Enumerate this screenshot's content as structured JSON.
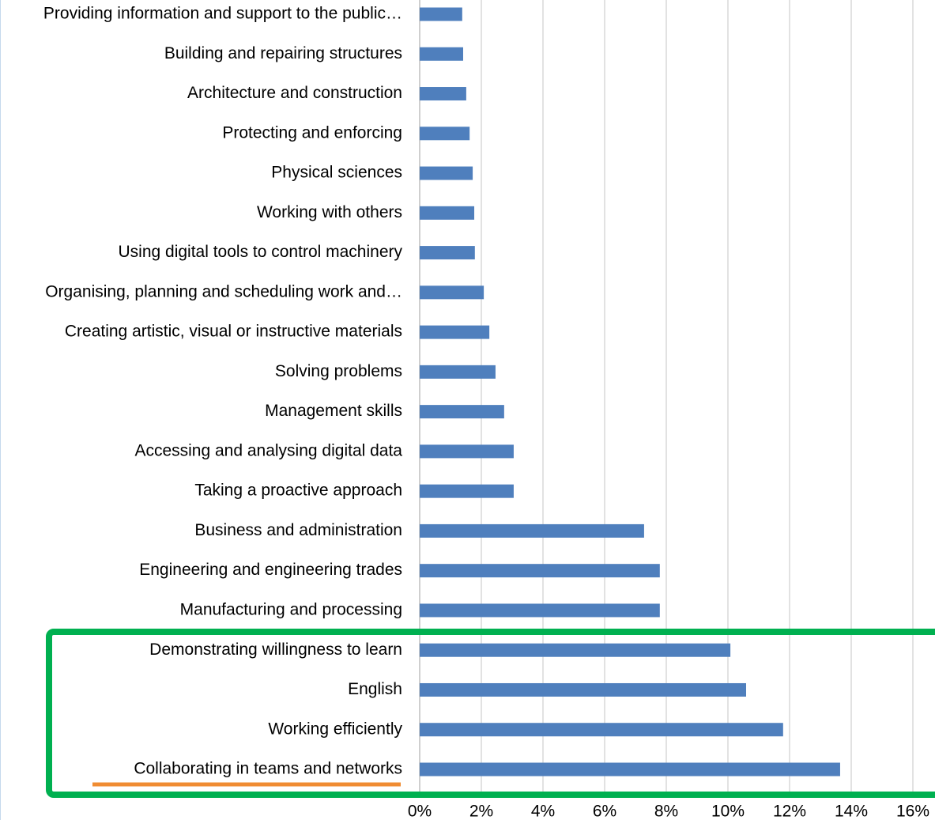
{
  "chart_data": {
    "type": "bar",
    "orientation": "horizontal",
    "categories": [
      "Providing information and support to the public…",
      "Building and repairing structures",
      "Architecture and construction",
      "Protecting and enforcing",
      "Physical sciences",
      "Working with others",
      "Using digital tools to control machinery",
      "Organising, planning and scheduling work and…",
      "Creating artistic, visual or instructive materials",
      "Solving problems",
      "Management skills",
      "Accessing and analysing digital data",
      "Taking a proactive approach",
      "Business and administration",
      "Engineering and engineering trades",
      "Manufacturing and processing",
      "Demonstrating willingness to learn",
      "English",
      "Working efficiently",
      "Collaborating in teams and networks"
    ],
    "values": [
      1.38,
      1.41,
      1.51,
      1.62,
      1.72,
      1.77,
      1.79,
      2.08,
      2.26,
      2.46,
      2.74,
      3.05,
      3.05,
      7.28,
      7.79,
      7.79,
      10.08,
      10.59,
      11.79,
      13.64
    ],
    "color": "#4f7fbd",
    "xlim": [
      0,
      16
    ],
    "xticks": [
      {
        "value": 0,
        "label": "0%"
      },
      {
        "value": 2,
        "label": "2%"
      },
      {
        "value": 4,
        "label": "4%"
      },
      {
        "value": 6,
        "label": "6%"
      },
      {
        "value": 8,
        "label": "8%"
      },
      {
        "value": 10,
        "label": "10%"
      },
      {
        "value": 12,
        "label": "12%"
      },
      {
        "value": 14,
        "label": "14%"
      },
      {
        "value": 16,
        "label": "16%"
      }
    ],
    "grid": true
  }
}
